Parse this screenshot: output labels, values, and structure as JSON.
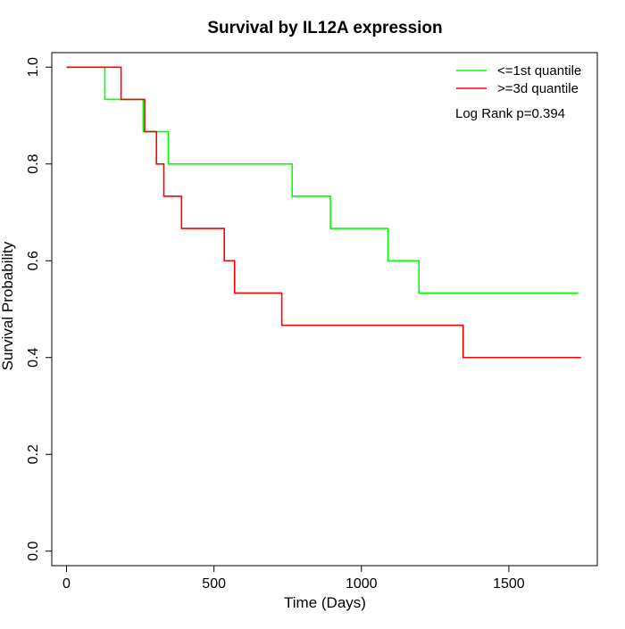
{
  "chart_data": {
    "type": "line",
    "step": true,
    "title": "Survival by IL12A expression",
    "xlabel": "Time (Days)",
    "ylabel": "Survival Probability",
    "xlim": [
      -50,
      1800
    ],
    "ylim": [
      -0.03,
      1.03
    ],
    "xticks": [
      0,
      500,
      1000,
      1500
    ],
    "yticks": [
      0.0,
      0.2,
      0.4,
      0.6,
      0.8,
      1.0
    ],
    "xtick_labels": [
      "0",
      "500",
      "1000",
      "1500"
    ],
    "ytick_labels": [
      "0.0",
      "0.2",
      "0.4",
      "0.6",
      "0.8",
      "1.0"
    ],
    "grid": false,
    "legend_position": "top-right",
    "annotation": "Log Rank p=0.394",
    "series": [
      {
        "name": "<=1st quantile",
        "color": "#00ff00",
        "x": [
          0,
          130,
          260,
          345,
          765,
          895,
          1090,
          1195,
          1735
        ],
        "y": [
          1.0,
          0.9333,
          0.8667,
          0.8,
          0.7333,
          0.6667,
          0.6,
          0.5333,
          0.5333
        ]
      },
      {
        "name": ">=3d quantile",
        "color": "#ff0000",
        "x": [
          0,
          185,
          265,
          305,
          330,
          390,
          535,
          570,
          730,
          1345,
          1745
        ],
        "y": [
          1.0,
          0.9333,
          0.8667,
          0.8,
          0.7333,
          0.6667,
          0.6,
          0.5333,
          0.4667,
          0.4,
          0.4
        ]
      }
    ]
  }
}
